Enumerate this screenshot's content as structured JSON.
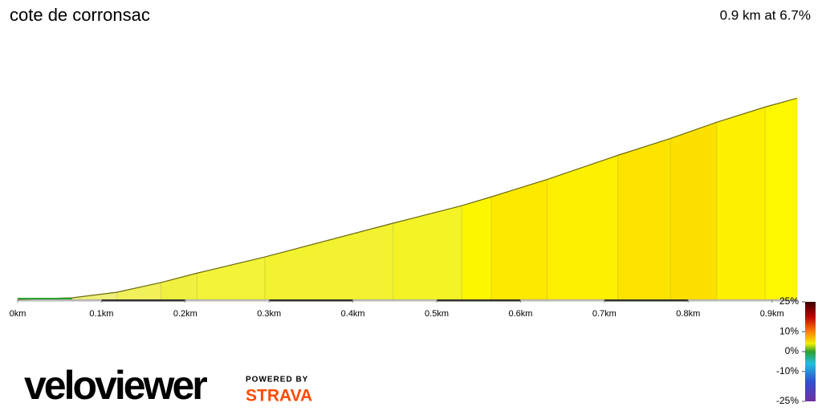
{
  "chart_data": {
    "type": "area",
    "title": "cote de corronsac",
    "subtitle": "0.9 km at 6.7%",
    "x": [
      0,
      0.065,
      0.118,
      0.171,
      0.214,
      0.295,
      0.448,
      0.53,
      0.565,
      0.632,
      0.716,
      0.779,
      0.834,
      0.892,
      0.93
    ],
    "values": [
      0,
      0.5,
      2.2,
      5.2,
      8.1,
      13.1,
      23.5,
      28.9,
      31.6,
      37.0,
      44.4,
      49.6,
      54.6,
      59.3,
      62
    ],
    "colors": [
      "#2ca02c",
      "#d8ec8c",
      "#eef07a",
      "#f2f05a",
      "#f0f040",
      "#f3f33a",
      "#f2f230",
      "#f3f326",
      "#fcf600",
      "#fde800",
      "#fdf000",
      "#fde400",
      "#fde000",
      "#fdf100",
      "#fff700"
    ],
    "xlim": [
      0,
      0.93
    ],
    "xticks": [
      {
        "value": 0,
        "label": "0km"
      },
      {
        "value": 0.1,
        "label": "0.1km"
      },
      {
        "value": 0.2,
        "label": "0.2km"
      },
      {
        "value": 0.3,
        "label": "0.3km"
      },
      {
        "value": 0.4,
        "label": "0.4km"
      },
      {
        "value": 0.5,
        "label": "0.5km"
      },
      {
        "value": 0.6,
        "label": "0.6km"
      },
      {
        "value": 0.7,
        "label": "0.7km"
      },
      {
        "value": 0.8,
        "label": "0.8km"
      },
      {
        "value": 0.9,
        "label": "0.9km"
      }
    ],
    "ylim": [
      0,
      70
    ],
    "color_scale": {
      "lim": [
        -25,
        25
      ],
      "ticks": [
        {
          "value": 25,
          "label": "25%"
        },
        {
          "value": 10,
          "label": "10%"
        },
        {
          "value": 0,
          "label": "0%"
        },
        {
          "value": -10,
          "label": "-10%"
        },
        {
          "value": -25,
          "label": "-25%"
        }
      ]
    },
    "branding": {
      "logo": "veloviewer",
      "powered": "POWERED BY",
      "strava": "STRAVA"
    }
  }
}
